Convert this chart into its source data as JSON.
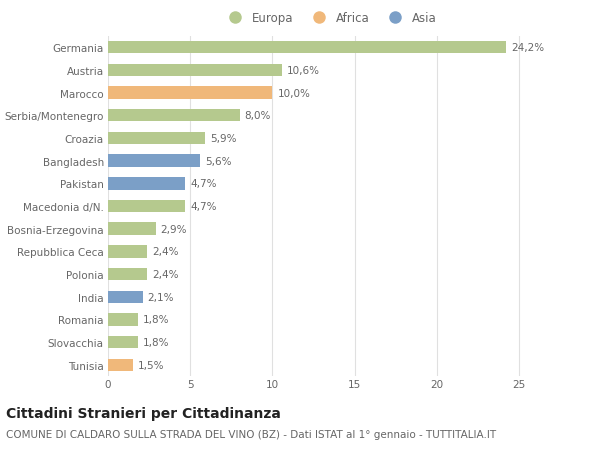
{
  "categories": [
    "Germania",
    "Austria",
    "Marocco",
    "Serbia/Montenegro",
    "Croazia",
    "Bangladesh",
    "Pakistan",
    "Macedonia d/N.",
    "Bosnia-Erzegovina",
    "Repubblica Ceca",
    "Polonia",
    "India",
    "Romania",
    "Slovacchia",
    "Tunisia"
  ],
  "values": [
    24.2,
    10.6,
    10.0,
    8.0,
    5.9,
    5.6,
    4.7,
    4.7,
    2.9,
    2.4,
    2.4,
    2.1,
    1.8,
    1.8,
    1.5
  ],
  "labels": [
    "24,2%",
    "10,6%",
    "10,0%",
    "8,0%",
    "5,9%",
    "5,6%",
    "4,7%",
    "4,7%",
    "2,9%",
    "2,4%",
    "2,4%",
    "2,1%",
    "1,8%",
    "1,8%",
    "1,5%"
  ],
  "continents": [
    "Europa",
    "Europa",
    "Africa",
    "Europa",
    "Europa",
    "Asia",
    "Asia",
    "Europa",
    "Europa",
    "Europa",
    "Europa",
    "Asia",
    "Europa",
    "Europa",
    "Africa"
  ],
  "colors": {
    "Europa": "#b5c98e",
    "Africa": "#f0b87a",
    "Asia": "#7b9fc7"
  },
  "title": "Cittadini Stranieri per Cittadinanza",
  "subtitle": "COMUNE DI CALDARO SULLA STRADA DEL VINO (BZ) - Dati ISTAT al 1° gennaio - TUTTITALIA.IT",
  "xlim": [
    0,
    27
  ],
  "xticks": [
    0,
    5,
    10,
    15,
    20,
    25
  ],
  "background_color": "#ffffff",
  "grid_color": "#e0e0e0",
  "bar_height": 0.55,
  "title_fontsize": 10,
  "subtitle_fontsize": 7.5,
  "label_fontsize": 7.5,
  "tick_fontsize": 7.5,
  "legend_fontsize": 8.5
}
